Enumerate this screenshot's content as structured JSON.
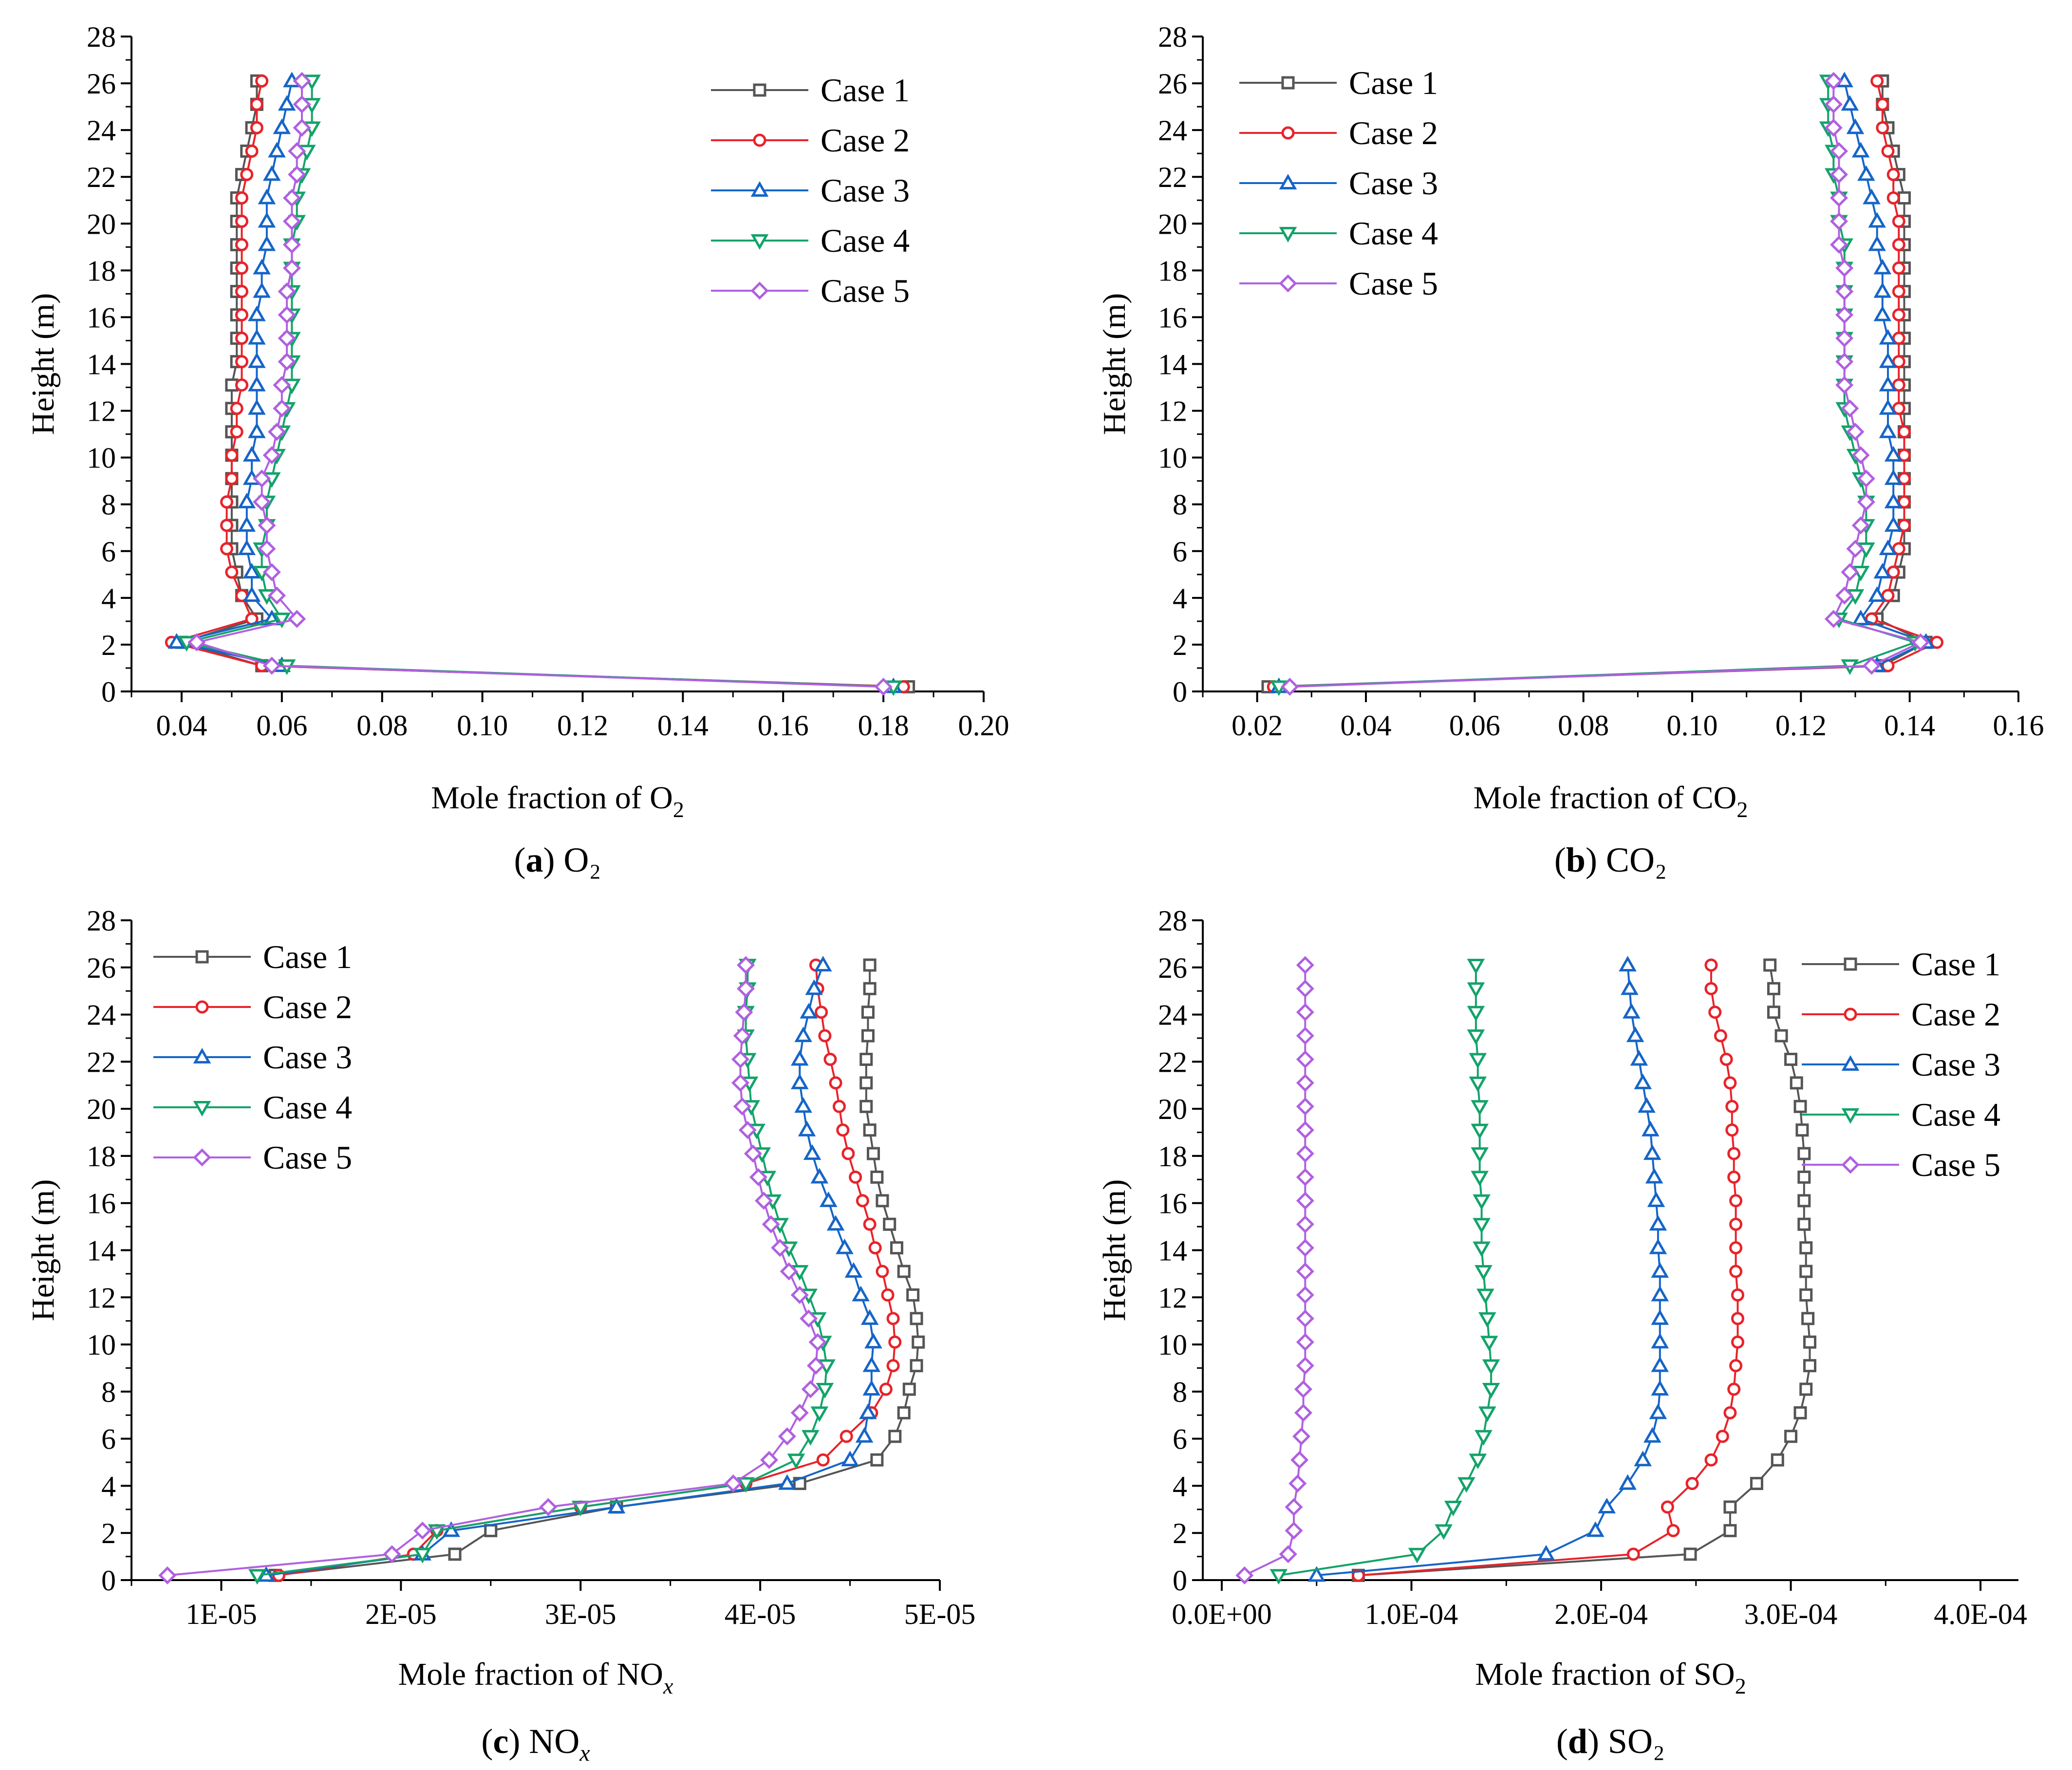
{
  "figure": {
    "series_names": [
      "Case 1",
      "Case 2",
      "Case 3",
      "Case 4",
      "Case 5"
    ],
    "series_colors": [
      "#555555",
      "#e8232a",
      "#1565c8",
      "#13a36a",
      "#b060e0"
    ],
    "series_markers": [
      "square",
      "circle",
      "triangle-up",
      "triangle-down",
      "diamond"
    ]
  },
  "chart_data": [
    {
      "id": "a",
      "type": "line",
      "caption_letter": "a",
      "caption_text": "O₂",
      "xlabel": "Mole fraction of O",
      "xlabel_sub": "2",
      "ylabel": "Height (m)",
      "legend_position": "top-right",
      "xlim": [
        0.03,
        0.2
      ],
      "ylim": [
        0,
        28
      ],
      "x_ticks": [
        0.04,
        0.06,
        0.08,
        0.1,
        0.12,
        0.14,
        0.16,
        0.18,
        0.2
      ],
      "x_tick_labels": [
        "0.04",
        "0.06",
        "0.08",
        "0.10",
        "0.12",
        "0.14",
        "0.16",
        "0.18",
        "0.20"
      ],
      "y_ticks": [
        0,
        2,
        4,
        6,
        8,
        10,
        12,
        14,
        16,
        18,
        20,
        22,
        24,
        26,
        28
      ],
      "y_tick_labels": [
        "0",
        "2",
        "4",
        "6",
        "8",
        "10",
        "12",
        "14",
        "16",
        "18",
        "20",
        "22",
        "24",
        "26",
        "28"
      ],
      "y": [
        0.2,
        1.1,
        2.1,
        3.1,
        4.1,
        5.1,
        6.1,
        7.1,
        8.1,
        9.1,
        10.1,
        11.1,
        12.1,
        13.1,
        14.1,
        15.1,
        16.1,
        17.1,
        18.1,
        19.1,
        20.1,
        21.1,
        22.1,
        23.1,
        24.1,
        25.1,
        26.1
      ],
      "series": [
        {
          "name": "Case 1",
          "values": [
            0.185,
            0.056,
            0.04,
            0.055,
            0.052,
            0.051,
            0.05,
            0.05,
            0.05,
            0.05,
            0.05,
            0.05,
            0.05,
            0.05,
            0.051,
            0.051,
            0.051,
            0.051,
            0.051,
            0.051,
            0.051,
            0.051,
            0.052,
            0.053,
            0.054,
            0.055,
            0.055
          ]
        },
        {
          "name": "Case 2",
          "values": [
            0.184,
            0.056,
            0.038,
            0.054,
            0.052,
            0.05,
            0.049,
            0.049,
            0.049,
            0.05,
            0.05,
            0.051,
            0.051,
            0.052,
            0.052,
            0.052,
            0.052,
            0.052,
            0.052,
            0.052,
            0.052,
            0.052,
            0.053,
            0.054,
            0.055,
            0.055,
            0.056
          ]
        },
        {
          "name": "Case 3",
          "values": [
            0.182,
            0.06,
            0.039,
            0.058,
            0.054,
            0.054,
            0.053,
            0.053,
            0.053,
            0.054,
            0.054,
            0.055,
            0.055,
            0.055,
            0.055,
            0.055,
            0.055,
            0.056,
            0.056,
            0.057,
            0.057,
            0.057,
            0.058,
            0.059,
            0.06,
            0.061,
            0.062
          ]
        },
        {
          "name": "Case 4",
          "values": [
            0.182,
            0.061,
            0.041,
            0.06,
            0.057,
            0.056,
            0.056,
            0.057,
            0.057,
            0.058,
            0.059,
            0.06,
            0.061,
            0.062,
            0.062,
            0.062,
            0.062,
            0.062,
            0.062,
            0.062,
            0.063,
            0.063,
            0.064,
            0.065,
            0.066,
            0.066,
            0.066
          ]
        },
        {
          "name": "Case 5",
          "values": [
            0.18,
            0.058,
            0.043,
            0.063,
            0.059,
            0.058,
            0.057,
            0.057,
            0.056,
            0.056,
            0.058,
            0.059,
            0.06,
            0.06,
            0.061,
            0.061,
            0.061,
            0.061,
            0.062,
            0.062,
            0.062,
            0.062,
            0.063,
            0.063,
            0.064,
            0.064,
            0.064
          ]
        }
      ]
    },
    {
      "id": "b",
      "type": "line",
      "caption_letter": "b",
      "caption_text": "CO₂",
      "xlabel": "Mole fraction of CO",
      "xlabel_sub": "2",
      "ylabel": "Height (m)",
      "legend_position": "top-left",
      "xlim": [
        0.01,
        0.16
      ],
      "ylim": [
        0,
        28
      ],
      "x_ticks": [
        0.02,
        0.04,
        0.06,
        0.08,
        0.1,
        0.12,
        0.14,
        0.16
      ],
      "x_tick_labels": [
        "0.02",
        "0.04",
        "0.06",
        "0.08",
        "0.10",
        "0.12",
        "0.14",
        "0.16"
      ],
      "y_ticks": [
        0,
        2,
        4,
        6,
        8,
        10,
        12,
        14,
        16,
        18,
        20,
        22,
        24,
        26,
        28
      ],
      "y_tick_labels": [
        "0",
        "2",
        "4",
        "6",
        "8",
        "10",
        "12",
        "14",
        "16",
        "18",
        "20",
        "22",
        "24",
        "26",
        "28"
      ],
      "y": [
        0.2,
        1.1,
        2.1,
        3.1,
        4.1,
        5.1,
        6.1,
        7.1,
        8.1,
        9.1,
        10.1,
        11.1,
        12.1,
        13.1,
        14.1,
        15.1,
        16.1,
        17.1,
        18.1,
        19.1,
        20.1,
        21.1,
        22.1,
        23.1,
        24.1,
        25.1,
        26.1
      ],
      "series": [
        {
          "name": "Case 1",
          "values": [
            0.022,
            0.135,
            0.143,
            0.134,
            0.137,
            0.138,
            0.139,
            0.139,
            0.139,
            0.139,
            0.139,
            0.139,
            0.139,
            0.139,
            0.139,
            0.139,
            0.139,
            0.139,
            0.139,
            0.139,
            0.139,
            0.139,
            0.138,
            0.137,
            0.136,
            0.135,
            0.135
          ]
        },
        {
          "name": "Case 2",
          "values": [
            0.023,
            0.136,
            0.145,
            0.133,
            0.136,
            0.137,
            0.138,
            0.139,
            0.139,
            0.139,
            0.139,
            0.139,
            0.138,
            0.138,
            0.138,
            0.138,
            0.138,
            0.138,
            0.138,
            0.138,
            0.138,
            0.137,
            0.137,
            0.136,
            0.135,
            0.135,
            0.134
          ]
        },
        {
          "name": "Case 3",
          "values": [
            0.024,
            0.134,
            0.143,
            0.131,
            0.134,
            0.135,
            0.136,
            0.137,
            0.137,
            0.137,
            0.137,
            0.136,
            0.136,
            0.136,
            0.136,
            0.136,
            0.135,
            0.135,
            0.135,
            0.134,
            0.134,
            0.133,
            0.132,
            0.131,
            0.13,
            0.129,
            0.128
          ]
        },
        {
          "name": "Case 4",
          "values": [
            0.024,
            0.129,
            0.141,
            0.127,
            0.13,
            0.131,
            0.132,
            0.132,
            0.132,
            0.131,
            0.13,
            0.129,
            0.128,
            0.128,
            0.128,
            0.128,
            0.128,
            0.128,
            0.128,
            0.128,
            0.127,
            0.127,
            0.126,
            0.126,
            0.125,
            0.125,
            0.125
          ]
        },
        {
          "name": "Case 5",
          "values": [
            0.026,
            0.133,
            0.142,
            0.126,
            0.128,
            0.129,
            0.13,
            0.131,
            0.132,
            0.132,
            0.131,
            0.13,
            0.129,
            0.128,
            0.128,
            0.128,
            0.128,
            0.128,
            0.128,
            0.127,
            0.127,
            0.127,
            0.127,
            0.127,
            0.126,
            0.126,
            0.126
          ]
        }
      ]
    },
    {
      "id": "c",
      "type": "line",
      "caption_letter": "c",
      "caption_text": "NO",
      "caption_sub": "x",
      "xlabel": "Mole fraction of NO",
      "xlabel_sub": "x",
      "ylabel": "Height (m)",
      "legend_position": "top-left",
      "xlim": [
        5e-06,
        5e-05
      ],
      "ylim": [
        0,
        28
      ],
      "x_ticks": [
        1e-05,
        2e-05,
        3e-05,
        4e-05,
        5e-05
      ],
      "x_tick_labels": [
        "1E-05",
        "2E-05",
        "3E-05",
        "4E-05",
        "5E-05"
      ],
      "y_ticks": [
        0,
        2,
        4,
        6,
        8,
        10,
        12,
        14,
        16,
        18,
        20,
        22,
        24,
        26,
        28
      ],
      "y_tick_labels": [
        "0",
        "2",
        "4",
        "6",
        "8",
        "10",
        "12",
        "14",
        "16",
        "18",
        "20",
        "22",
        "24",
        "26",
        "28"
      ],
      "y": [
        0.2,
        1.1,
        2.1,
        3.1,
        4.1,
        5.1,
        6.1,
        7.1,
        8.1,
        9.1,
        10.1,
        11.1,
        12.1,
        13.1,
        14.1,
        15.1,
        16.1,
        17.1,
        18.1,
        19.1,
        20.1,
        21.1,
        22.1,
        23.1,
        24.1,
        25.1,
        26.1
      ],
      "series": [
        {
          "name": "Case 1",
          "values": [
            1.3e-05,
            2.3e-05,
            2.5e-05,
            3.2e-05,
            4.22e-05,
            4.65e-05,
            4.75e-05,
            4.8e-05,
            4.83e-05,
            4.87e-05,
            4.88e-05,
            4.87e-05,
            4.85e-05,
            4.8e-05,
            4.76e-05,
            4.72e-05,
            4.68e-05,
            4.65e-05,
            4.63e-05,
            4.61e-05,
            4.59e-05,
            4.59e-05,
            4.59e-05,
            4.6e-05,
            4.6e-05,
            4.61e-05,
            4.61e-05
          ]
        },
        {
          "name": "Case 2",
          "values": [
            1.32e-05,
            2.07e-05,
            2.2e-05,
            3e-05,
            3.92e-05,
            4.35e-05,
            4.48e-05,
            4.62e-05,
            4.7e-05,
            4.74e-05,
            4.75e-05,
            4.74e-05,
            4.71e-05,
            4.68e-05,
            4.64e-05,
            4.61e-05,
            4.57e-05,
            4.53e-05,
            4.49e-05,
            4.46e-05,
            4.44e-05,
            4.42e-05,
            4.39e-05,
            4.36e-05,
            4.34e-05,
            4.32e-05,
            4.31e-05
          ]
        },
        {
          "name": "Case 3",
          "values": [
            1.25e-05,
            2.12e-05,
            2.28e-05,
            3.2e-05,
            4.15e-05,
            4.5e-05,
            4.58e-05,
            4.6e-05,
            4.62e-05,
            4.62e-05,
            4.63e-05,
            4.61e-05,
            4.56e-05,
            4.52e-05,
            4.47e-05,
            4.42e-05,
            4.38e-05,
            4.33e-05,
            4.29e-05,
            4.26e-05,
            4.24e-05,
            4.22e-05,
            4.22e-05,
            4.24e-05,
            4.27e-05,
            4.3e-05,
            4.35e-05
          ]
        },
        {
          "name": "Case 4",
          "values": [
            1.2e-05,
            2.12e-05,
            2.2e-05,
            3e-05,
            3.92e-05,
            4.2e-05,
            4.28e-05,
            4.33e-05,
            4.36e-05,
            4.37e-05,
            4.35e-05,
            4.32e-05,
            4.27e-05,
            4.22e-05,
            4.16e-05,
            4.11e-05,
            4.07e-05,
            4.04e-05,
            4.01e-05,
            3.98e-05,
            3.95e-05,
            3.94e-05,
            3.93e-05,
            3.92e-05,
            3.92e-05,
            3.93e-05,
            3.93e-05
          ]
        },
        {
          "name": "Case 5",
          "values": [
            7e-06,
            1.95e-05,
            2.12e-05,
            2.82e-05,
            3.85e-05,
            4.05e-05,
            4.15e-05,
            4.22e-05,
            4.28e-05,
            4.31e-05,
            4.32e-05,
            4.27e-05,
            4.22e-05,
            4.16e-05,
            4.11e-05,
            4.06e-05,
            4.02e-05,
            3.99e-05,
            3.96e-05,
            3.93e-05,
            3.9e-05,
            3.89e-05,
            3.89e-05,
            3.9e-05,
            3.91e-05,
            3.92e-05,
            3.92e-05
          ]
        }
      ]
    },
    {
      "id": "d",
      "type": "line",
      "caption_letter": "d",
      "caption_text": "SO₂",
      "xlabel": "Mole fraction of SO",
      "xlabel_sub": "2",
      "ylabel": "Height (m)",
      "legend_position": "top-right",
      "xlim": [
        -1e-05,
        0.00042
      ],
      "ylim": [
        0,
        28
      ],
      "x_ticks": [
        0,
        0.0001,
        0.0002,
        0.0003,
        0.0004
      ],
      "x_tick_labels": [
        "0.0E+00",
        "1.0E-04",
        "2.0E-04",
        "3.0E-04",
        "4.0E-04"
      ],
      "y_ticks": [
        0,
        2,
        4,
        6,
        8,
        10,
        12,
        14,
        16,
        18,
        20,
        22,
        24,
        26,
        28
      ],
      "y_tick_labels": [
        "0",
        "2",
        "4",
        "6",
        "8",
        "10",
        "12",
        "14",
        "16",
        "18",
        "20",
        "22",
        "24",
        "26",
        "28"
      ],
      "y": [
        0.2,
        1.1,
        2.1,
        3.1,
        4.1,
        5.1,
        6.1,
        7.1,
        8.1,
        9.1,
        10.1,
        11.1,
        12.1,
        13.1,
        14.1,
        15.1,
        16.1,
        17.1,
        18.1,
        19.1,
        20.1,
        21.1,
        22.1,
        23.1,
        24.1,
        25.1,
        26.1
      ],
      "series": [
        {
          "name": "Case 1",
          "values": [
            7.2e-05,
            0.000247,
            0.000268,
            0.000268,
            0.000282,
            0.000293,
            0.0003,
            0.000305,
            0.000308,
            0.00031,
            0.00031,
            0.000309,
            0.000308,
            0.000308,
            0.000308,
            0.000307,
            0.000307,
            0.000307,
            0.000307,
            0.000306,
            0.000305,
            0.000303,
            0.0003,
            0.000295,
            0.000291,
            0.000291,
            0.000289
          ]
        },
        {
          "name": "Case 2",
          "values": [
            7.2e-05,
            0.000217,
            0.000238,
            0.000235,
            0.000248,
            0.000258,
            0.000264,
            0.000268,
            0.00027,
            0.000271,
            0.000272,
            0.000272,
            0.000272,
            0.000271,
            0.000271,
            0.000271,
            0.000271,
            0.00027,
            0.00027,
            0.000269,
            0.000269,
            0.000268,
            0.000266,
            0.000263,
            0.00026,
            0.000258,
            0.000258
          ]
        },
        {
          "name": "Case 3",
          "values": [
            5e-05,
            0.000171,
            0.000197,
            0.000203,
            0.000214,
            0.000222,
            0.000227,
            0.00023,
            0.000231,
            0.000231,
            0.000231,
            0.000231,
            0.000231,
            0.000231,
            0.00023,
            0.00023,
            0.000229,
            0.000228,
            0.000227,
            0.000226,
            0.000224,
            0.000222,
            0.00022,
            0.000218,
            0.000216,
            0.000215,
            0.000214
          ]
        },
        {
          "name": "Case 4",
          "values": [
            3e-05,
            0.000103,
            0.000117,
            0.000122,
            0.000129,
            0.000135,
            0.000138,
            0.00014,
            0.000142,
            0.000142,
            0.000141,
            0.00014,
            0.000139,
            0.000138,
            0.000137,
            0.000137,
            0.000137,
            0.000136,
            0.000136,
            0.000136,
            0.000136,
            0.000135,
            0.000135,
            0.000134,
            0.000134,
            0.000134,
            0.000134
          ]
        },
        {
          "name": "Case 5",
          "values": [
            1.2e-05,
            3.5e-05,
            3.8e-05,
            3.8e-05,
            4e-05,
            4.1e-05,
            4.2e-05,
            4.3e-05,
            4.3e-05,
            4.4e-05,
            4.4e-05,
            4.4e-05,
            4.4e-05,
            4.4e-05,
            4.4e-05,
            4.4e-05,
            4.4e-05,
            4.4e-05,
            4.4e-05,
            4.4e-05,
            4.4e-05,
            4.4e-05,
            4.4e-05,
            4.4e-05,
            4.4e-05,
            4.4e-05,
            4.4e-05
          ]
        }
      ]
    }
  ]
}
